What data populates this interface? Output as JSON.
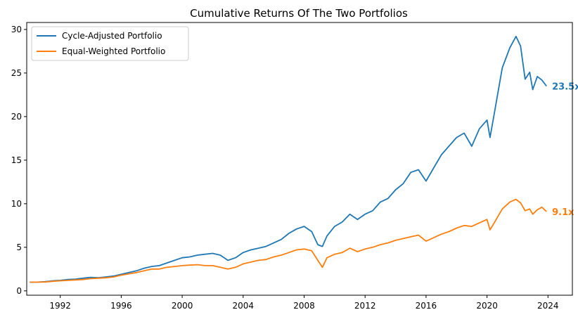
{
  "chart_data": {
    "type": "line",
    "title": "Cumulative Returns Of The Two Portfolios",
    "xlabel": "",
    "ylabel": "",
    "xlim": [
      1989.8,
      2025.6
    ],
    "ylim": [
      -0.5,
      30.8
    ],
    "x_ticks": [
      1992,
      1996,
      2000,
      2004,
      2008,
      2012,
      2016,
      2020,
      2024
    ],
    "y_ticks": [
      0,
      5,
      10,
      15,
      20,
      25,
      30
    ],
    "grid": false,
    "legend_position": "top-left",
    "series": [
      {
        "name": "Cycle-Adjusted Portfolio",
        "color": "#1f77b4",
        "end_label": "23.5x",
        "x": [
          1990.0,
          1990.5,
          1991.0,
          1991.5,
          1992.0,
          1992.5,
          1993.0,
          1993.5,
          1994.0,
          1994.5,
          1995.0,
          1995.5,
          1996.0,
          1996.5,
          1997.0,
          1997.5,
          1998.0,
          1998.5,
          1999.0,
          1999.5,
          2000.0,
          2000.5,
          2001.0,
          2001.5,
          2002.0,
          2002.5,
          2003.0,
          2003.5,
          2004.0,
          2004.5,
          2005.0,
          2005.5,
          2006.0,
          2006.5,
          2007.0,
          2007.5,
          2008.0,
          2008.5,
          2008.9,
          2009.2,
          2009.5,
          2010.0,
          2010.5,
          2011.0,
          2011.5,
          2012.0,
          2012.5,
          2013.0,
          2013.5,
          2014.0,
          2014.5,
          2015.0,
          2015.5,
          2016.0,
          2016.5,
          2017.0,
          2017.5,
          2018.0,
          2018.5,
          2019.0,
          2019.5,
          2020.0,
          2020.2,
          2020.5,
          2021.0,
          2021.5,
          2021.9,
          2022.2,
          2022.5,
          2022.8,
          2023.0,
          2023.3,
          2023.6,
          2023.9
        ],
        "values": [
          1.0,
          1.0,
          1.05,
          1.15,
          1.2,
          1.3,
          1.35,
          1.45,
          1.55,
          1.5,
          1.6,
          1.7,
          1.9,
          2.1,
          2.3,
          2.6,
          2.8,
          2.9,
          3.2,
          3.5,
          3.8,
          3.9,
          4.1,
          4.2,
          4.3,
          4.1,
          3.5,
          3.8,
          4.4,
          4.7,
          4.9,
          5.1,
          5.5,
          5.9,
          6.6,
          7.1,
          7.4,
          6.8,
          5.3,
          5.1,
          6.3,
          7.4,
          7.9,
          8.8,
          8.2,
          8.8,
          9.2,
          10.2,
          10.6,
          11.6,
          12.3,
          13.6,
          13.9,
          12.6,
          14.1,
          15.6,
          16.6,
          17.6,
          18.1,
          16.6,
          18.6,
          19.6,
          17.6,
          20.6,
          25.6,
          27.9,
          29.2,
          28.1,
          24.3,
          25.1,
          23.1,
          24.6,
          24.2,
          23.5
        ]
      },
      {
        "name": "Equal-Weighted Portfolio",
        "color": "#ff7f0e",
        "end_label": "9.1x",
        "x": [
          1990.0,
          1990.5,
          1991.0,
          1991.5,
          1992.0,
          1992.5,
          1993.0,
          1993.5,
          1994.0,
          1994.5,
          1995.0,
          1995.5,
          1996.0,
          1996.5,
          1997.0,
          1997.5,
          1998.0,
          1998.5,
          1999.0,
          1999.5,
          2000.0,
          2000.5,
          2001.0,
          2001.5,
          2002.0,
          2002.5,
          2003.0,
          2003.5,
          2004.0,
          2004.5,
          2005.0,
          2005.5,
          2006.0,
          2006.5,
          2007.0,
          2007.5,
          2008.0,
          2008.5,
          2008.9,
          2009.2,
          2009.5,
          2010.0,
          2010.5,
          2011.0,
          2011.5,
          2012.0,
          2012.5,
          2013.0,
          2013.5,
          2014.0,
          2014.5,
          2015.0,
          2015.5,
          2016.0,
          2016.5,
          2017.0,
          2017.5,
          2018.0,
          2018.5,
          2019.0,
          2019.5,
          2020.0,
          2020.2,
          2020.5,
          2021.0,
          2021.5,
          2021.9,
          2022.2,
          2022.5,
          2022.8,
          2023.0,
          2023.3,
          2023.6,
          2023.9
        ],
        "values": [
          1.0,
          1.0,
          1.02,
          1.1,
          1.15,
          1.2,
          1.25,
          1.3,
          1.4,
          1.45,
          1.5,
          1.6,
          1.8,
          1.95,
          2.1,
          2.3,
          2.5,
          2.5,
          2.7,
          2.8,
          2.9,
          2.95,
          3.0,
          2.9,
          2.9,
          2.7,
          2.5,
          2.7,
          3.1,
          3.3,
          3.5,
          3.6,
          3.9,
          4.1,
          4.4,
          4.7,
          4.8,
          4.6,
          3.5,
          2.7,
          3.8,
          4.2,
          4.4,
          4.9,
          4.5,
          4.8,
          5.0,
          5.3,
          5.5,
          5.8,
          6.0,
          6.2,
          6.4,
          5.7,
          6.1,
          6.5,
          6.8,
          7.2,
          7.5,
          7.4,
          7.8,
          8.2,
          7.0,
          7.9,
          9.4,
          10.2,
          10.5,
          10.1,
          9.2,
          9.4,
          8.8,
          9.3,
          9.6,
          9.1
        ]
      }
    ]
  }
}
